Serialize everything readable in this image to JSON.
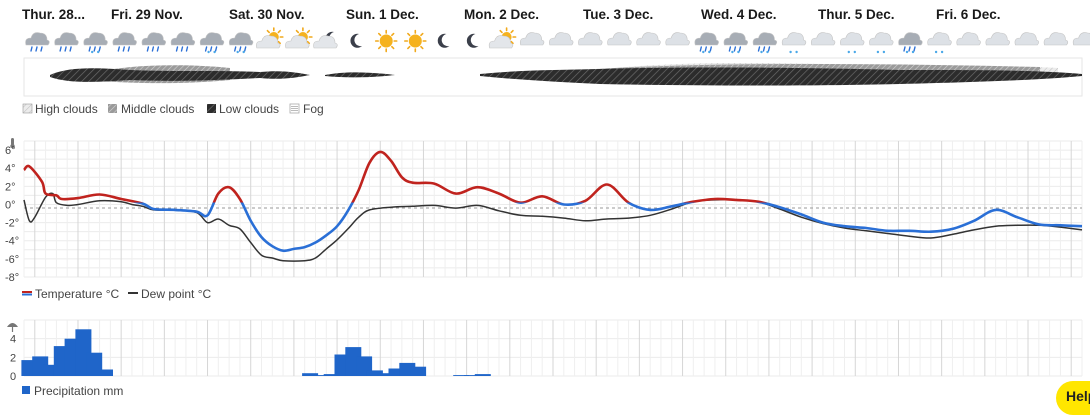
{
  "days": [
    "Thur. 28...",
    "Fri. 29 Nov.",
    "Sat. 30 Nov.",
    "Sun. 1 Dec.",
    "Mon. 2 Dec.",
    "Tue. 3 Dec.",
    "Wed. 4 Dec.",
    "Thur. 5 Dec.",
    "Fri. 6 Dec."
  ],
  "weather_icons": [
    "rain",
    "rain",
    "snow-rain",
    "rain",
    "rain",
    "rain",
    "snow-rain",
    "snow-rain",
    "sun-cloud",
    "sun-cloud",
    "moon-cloud",
    "moon",
    "sun",
    "sun",
    "moon",
    "moon",
    "sun-cloud",
    "cloud",
    "cloud",
    "cloud",
    "cloud",
    "cloud",
    "cloud",
    "snow-rain",
    "snow-rain",
    "snow-rain",
    "snow",
    "cloud",
    "snow",
    "snow",
    "snow-rain",
    "snow",
    "cloud",
    "cloud",
    "cloud",
    "cloud",
    "cloud"
  ],
  "cloud_legend": [
    {
      "label": "High clouds",
      "icon": "high-clouds-icon"
    },
    {
      "label": "Middle clouds",
      "icon": "middle-clouds-icon"
    },
    {
      "label": "Low clouds",
      "icon": "low-clouds-icon"
    },
    {
      "label": "Fog",
      "icon": "fog-icon"
    }
  ],
  "help_label": "Help",
  "chart_data": [
    {
      "type": "line",
      "x_unit": "hours from start",
      "ylim": [
        -8,
        7
      ],
      "y_ticks": [
        "6°",
        "4°",
        "2°",
        "0°",
        "-2°",
        "-4°",
        "-6°",
        "-8°"
      ],
      "series": [
        {
          "name": "Temperature °C",
          "color": "#c0231e",
          "color_below_zero": "#2a6fd6",
          "points": [
            [
              0,
              3.8
            ],
            [
              3,
              4.2
            ],
            [
              10,
              2.5
            ],
            [
              12,
              1.2
            ],
            [
              18,
              1.0
            ],
            [
              21,
              0.6
            ],
            [
              30,
              0.7
            ],
            [
              42,
              1.1
            ],
            [
              54,
              0.6
            ],
            [
              66,
              0.1
            ],
            [
              72,
              -0.5
            ],
            [
              84,
              -0.6
            ],
            [
              96,
              -0.8
            ],
            [
              102,
              -1.2
            ],
            [
              108,
              1.2
            ],
            [
              114,
              1.9
            ],
            [
              120,
              0.6
            ],
            [
              126,
              -1.8
            ],
            [
              132,
              -3.6
            ],
            [
              138,
              -4.6
            ],
            [
              144,
              -5.1
            ],
            [
              150,
              -4.9
            ],
            [
              156,
              -4.7
            ],
            [
              162,
              -4.2
            ],
            [
              168,
              -3.4
            ],
            [
              174,
              -2.4
            ],
            [
              180,
              -0.7
            ],
            [
              186,
              1.6
            ],
            [
              192,
              4.6
            ],
            [
              198,
              5.8
            ],
            [
              204,
              4.8
            ],
            [
              210,
              3.0
            ],
            [
              216,
              2.4
            ],
            [
              228,
              2.3
            ],
            [
              240,
              1.2
            ],
            [
              252,
              1.9
            ],
            [
              264,
              1.2
            ],
            [
              276,
              0.2
            ],
            [
              288,
              0.9
            ],
            [
              300,
              0.0
            ],
            [
              312,
              0.4
            ],
            [
              324,
              2.2
            ],
            [
              336,
              0.2
            ],
            [
              348,
              -0.6
            ],
            [
              360,
              -0.2
            ],
            [
              372,
              0.3
            ],
            [
              384,
              0.6
            ],
            [
              396,
              0.5
            ],
            [
              408,
              0.3
            ],
            [
              420,
              -0.3
            ],
            [
              432,
              -1.1
            ],
            [
              444,
              -2.0
            ],
            [
              456,
              -2.4
            ],
            [
              468,
              -2.6
            ],
            [
              480,
              -2.9
            ],
            [
              492,
              -2.9
            ],
            [
              504,
              -3.0
            ],
            [
              516,
              -2.7
            ],
            [
              528,
              -1.8
            ],
            [
              540,
              -0.6
            ],
            [
              552,
              -1.4
            ],
            [
              564,
              -2.2
            ],
            [
              576,
              -2.3
            ],
            [
              588,
              -2.4
            ]
          ]
        },
        {
          "name": "Dew point °C",
          "color": "#333333",
          "points": [
            [
              0,
              0.5
            ],
            [
              3,
              -1.8
            ],
            [
              6,
              -1.4
            ],
            [
              12,
              0.8
            ],
            [
              16,
              1.2
            ],
            [
              18,
              0.2
            ],
            [
              24,
              -0.1
            ],
            [
              30,
              0.0
            ],
            [
              42,
              0.4
            ],
            [
              54,
              0.3
            ],
            [
              60,
              0.0
            ],
            [
              66,
              -0.2
            ],
            [
              72,
              -0.6
            ],
            [
              84,
              -0.6
            ],
            [
              96,
              -0.9
            ],
            [
              102,
              -2.0
            ],
            [
              108,
              -1.6
            ],
            [
              114,
              -2.3
            ],
            [
              120,
              -2.7
            ],
            [
              126,
              -4.2
            ],
            [
              132,
              -5.6
            ],
            [
              138,
              -5.9
            ],
            [
              144,
              -6.2
            ],
            [
              156,
              -6.2
            ],
            [
              162,
              -5.9
            ],
            [
              168,
              -4.9
            ],
            [
              174,
              -3.9
            ],
            [
              180,
              -2.7
            ],
            [
              186,
              -1.4
            ],
            [
              192,
              -0.6
            ],
            [
              204,
              -0.3
            ],
            [
              216,
              -0.2
            ],
            [
              228,
              -0.1
            ],
            [
              240,
              -0.4
            ],
            [
              252,
              -0.1
            ],
            [
              264,
              -0.7
            ],
            [
              276,
              -1.2
            ],
            [
              288,
              -1.3
            ],
            [
              300,
              -1.5
            ],
            [
              312,
              -1.8
            ],
            [
              324,
              -1.6
            ],
            [
              336,
              -1.5
            ],
            [
              348,
              -1.2
            ],
            [
              360,
              -0.5
            ],
            [
              372,
              0.3
            ],
            [
              384,
              0.5
            ],
            [
              396,
              0.5
            ],
            [
              408,
              0.3
            ],
            [
              420,
              -0.5
            ],
            [
              432,
              -1.4
            ],
            [
              444,
              -2.1
            ],
            [
              456,
              -2.6
            ],
            [
              468,
              -2.9
            ],
            [
              480,
              -3.2
            ],
            [
              492,
              -3.5
            ],
            [
              504,
              -3.7
            ],
            [
              516,
              -3.3
            ],
            [
              528,
              -2.8
            ],
            [
              540,
              -2.4
            ],
            [
              552,
              -2.3
            ],
            [
              564,
              -2.3
            ],
            [
              576,
              -2.5
            ],
            [
              588,
              -2.8
            ]
          ]
        }
      ],
      "legend": [
        "Temperature °C",
        "Dew point °C"
      ]
    },
    {
      "type": "bar",
      "ylim": [
        0,
        6
      ],
      "y_ticks": [
        "4",
        "2",
        "0"
      ],
      "x_step_hours": 6,
      "series": [
        {
          "name": "Precipitation mm",
          "color": "#1f65c9",
          "values": [
            1.7,
            2.1,
            1.2,
            3.2,
            4.0,
            5.0,
            2.5,
            0.7,
            0,
            0,
            0,
            0,
            0,
            0,
            0,
            0,
            0,
            0,
            0,
            0,
            0,
            0,
            0,
            0,
            0,
            0,
            0.3,
            0.1,
            0.2,
            2.3,
            3.1,
            2.1,
            0.6,
            0.3,
            0.8,
            1.4,
            1.0,
            0,
            0,
            0,
            0.1,
            0.1,
            0.2
          ]
        }
      ],
      "legend": [
        "Precipitation mm"
      ]
    }
  ]
}
